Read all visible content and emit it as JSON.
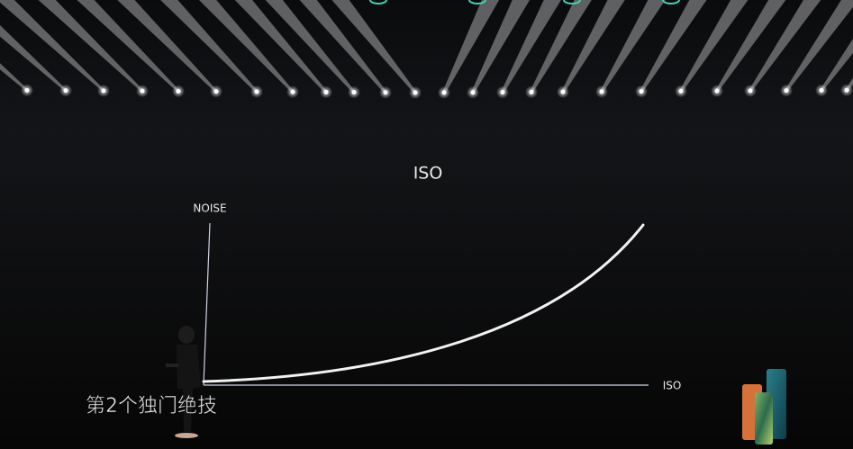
{
  "slide": {
    "title": "ISO",
    "y_axis_label": "NOISE",
    "x_axis_label": "ISO"
  },
  "subtitle": "第2个独门绝技"
}
